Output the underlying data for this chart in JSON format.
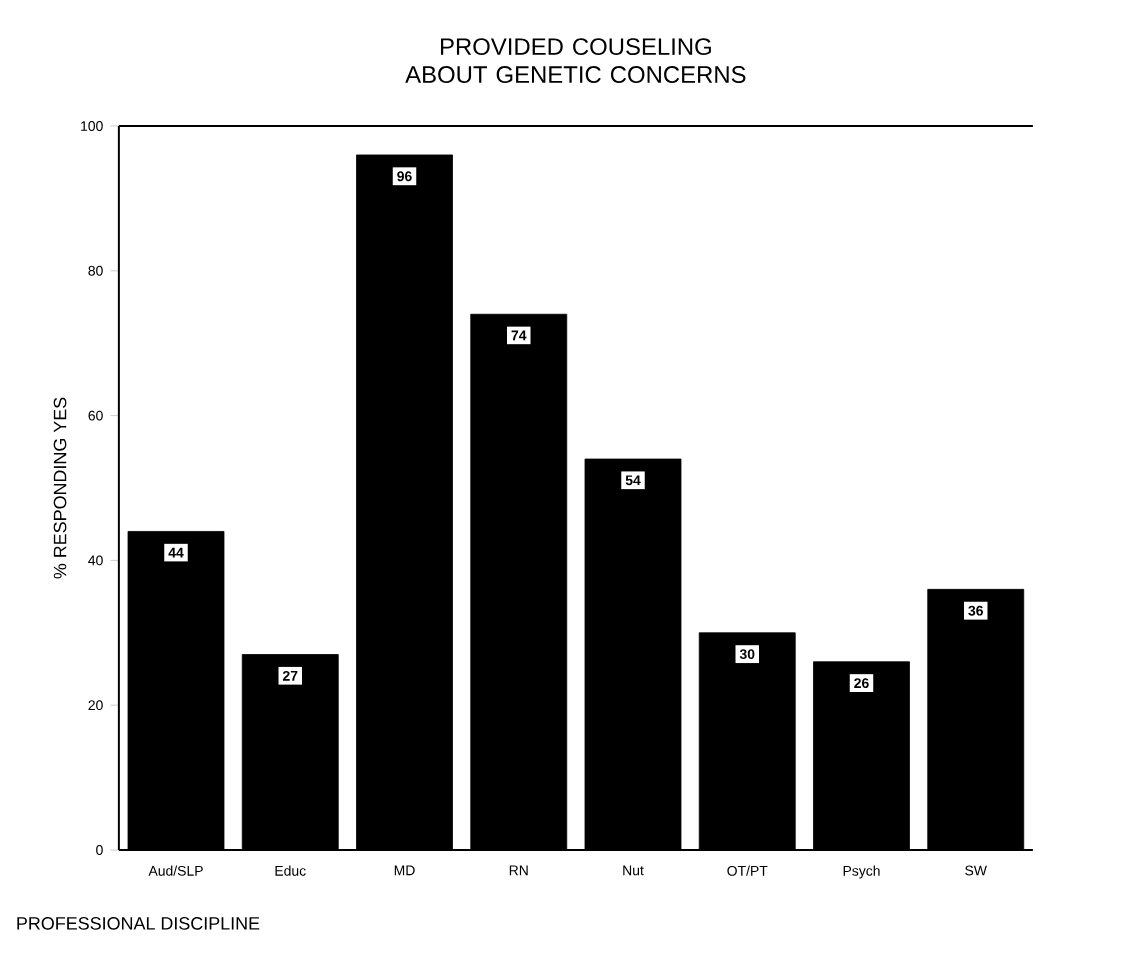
{
  "chart_data": {
    "type": "bar",
    "title": "PROVIDED COUSELING ABOUT GENETIC CONCERNS",
    "xlabel": "PROFESSIONAL DISCIPLINE",
    "ylabel": "% RESPONDING YES",
    "categories": [
      "Aud/SLP",
      "Educ",
      "MD",
      "RN",
      "Nut",
      "OT/PT",
      "Psych",
      "SW"
    ],
    "values": [
      44,
      27,
      96,
      74,
      54,
      30,
      26,
      36
    ],
    "color": "#000000",
    "ylim": [
      0,
      100
    ],
    "yticks": [
      0,
      20,
      40,
      60,
      80,
      100
    ],
    "data_labels": true
  }
}
